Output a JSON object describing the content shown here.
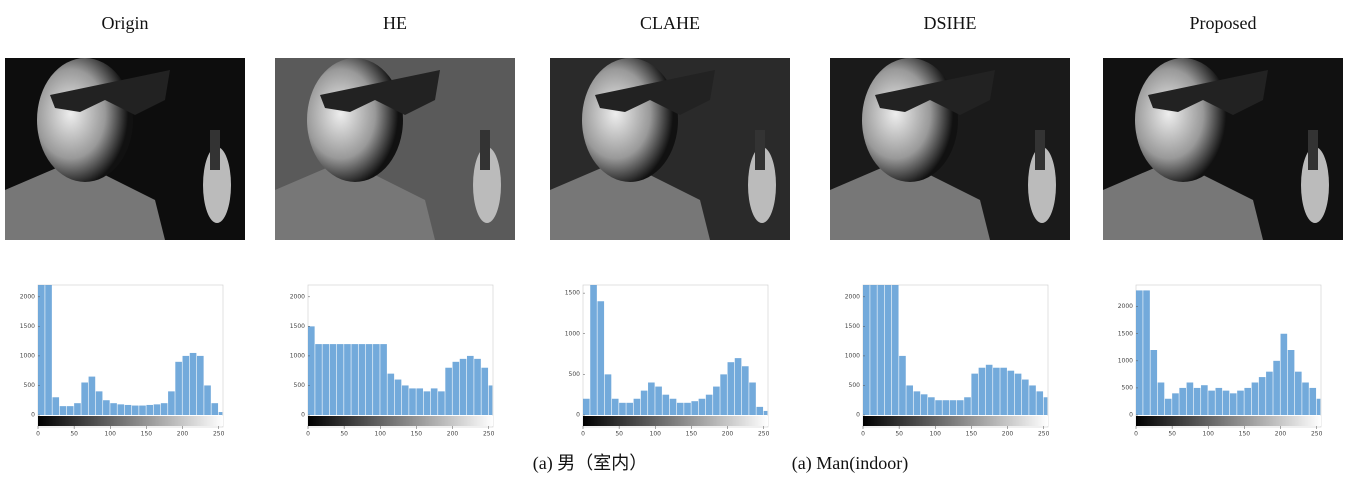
{
  "chart_data": [
    {
      "type": "histogram",
      "title": "Origin",
      "color": "#5b9bd5",
      "bins": [
        0,
        10,
        20,
        30,
        40,
        50,
        60,
        70,
        80,
        90,
        100,
        110,
        120,
        130,
        140,
        150,
        160,
        170,
        180,
        190,
        200,
        210,
        220,
        230,
        240,
        250,
        256
      ],
      "values": [
        2200,
        2200,
        300,
        150,
        150,
        200,
        550,
        650,
        400,
        250,
        200,
        180,
        170,
        160,
        160,
        170,
        180,
        200,
        400,
        900,
        1000,
        1050,
        1000,
        500,
        200,
        50
      ],
      "xlim": [
        0,
        256
      ],
      "xticks": [
        0,
        50,
        100,
        150,
        200,
        250
      ],
      "ylim": [
        0,
        2200
      ],
      "yticks": [
        0,
        500,
        1000,
        1500,
        2000
      ]
    },
    {
      "type": "histogram",
      "title": "HE",
      "color": "#5b9bd5",
      "bins": [
        0,
        10,
        20,
        30,
        40,
        50,
        60,
        70,
        80,
        90,
        100,
        110,
        120,
        130,
        140,
        150,
        160,
        170,
        180,
        190,
        200,
        210,
        220,
        230,
        240,
        250,
        256
      ],
      "values": [
        1500,
        1200,
        1200,
        1200,
        1200,
        1200,
        1200,
        1200,
        1200,
        1200,
        1200,
        700,
        600,
        500,
        450,
        450,
        400,
        450,
        400,
        800,
        900,
        950,
        1000,
        950,
        800,
        500
      ],
      "xlim": [
        0,
        256
      ],
      "xticks": [
        0,
        50,
        100,
        150,
        200,
        250
      ],
      "ylim": [
        0,
        2200
      ],
      "yticks": [
        0,
        500,
        1000,
        1500,
        2000
      ]
    },
    {
      "type": "histogram",
      "title": "CLAHE",
      "color": "#5b9bd5",
      "bins": [
        0,
        10,
        20,
        30,
        40,
        50,
        60,
        70,
        80,
        90,
        100,
        110,
        120,
        130,
        140,
        150,
        160,
        170,
        180,
        190,
        200,
        210,
        220,
        230,
        240,
        250,
        256
      ],
      "values": [
        200,
        1600,
        1400,
        500,
        200,
        150,
        150,
        200,
        300,
        400,
        350,
        250,
        200,
        150,
        150,
        170,
        200,
        250,
        350,
        500,
        650,
        700,
        600,
        400,
        100,
        50
      ],
      "xlim": [
        0,
        256
      ],
      "xticks": [
        0,
        50,
        100,
        150,
        200,
        250
      ],
      "ylim": [
        0,
        1600
      ],
      "yticks": [
        0,
        500,
        1000,
        1500
      ]
    },
    {
      "type": "histogram",
      "title": "DSIHE",
      "color": "#5b9bd5",
      "bins": [
        0,
        10,
        20,
        30,
        40,
        50,
        60,
        70,
        80,
        90,
        100,
        110,
        120,
        130,
        140,
        150,
        160,
        170,
        180,
        190,
        200,
        210,
        220,
        230,
        240,
        250,
        256
      ],
      "values": [
        2200,
        2200,
        2200,
        2200,
        2200,
        1000,
        500,
        400,
        350,
        300,
        250,
        250,
        250,
        250,
        300,
        700,
        800,
        850,
        800,
        800,
        750,
        700,
        600,
        500,
        400,
        300
      ],
      "xlim": [
        0,
        256
      ],
      "xticks": [
        0,
        50,
        100,
        150,
        200,
        250
      ],
      "ylim": [
        0,
        2200
      ],
      "yticks": [
        0,
        500,
        1000,
        1500,
        2000
      ]
    },
    {
      "type": "histogram",
      "title": "Proposed",
      "color": "#5b9bd5",
      "bins": [
        0,
        10,
        20,
        30,
        40,
        50,
        60,
        70,
        80,
        90,
        100,
        110,
        120,
        130,
        140,
        150,
        160,
        170,
        180,
        190,
        200,
        210,
        220,
        230,
        240,
        250,
        256
      ],
      "values": [
        2300,
        2300,
        1200,
        600,
        300,
        400,
        500,
        600,
        500,
        550,
        450,
        500,
        450,
        400,
        450,
        500,
        600,
        700,
        800,
        1000,
        1500,
        1200,
        800,
        600,
        500,
        300
      ],
      "xlim": [
        0,
        256
      ],
      "xticks": [
        0,
        50,
        100,
        150,
        200,
        250
      ],
      "ylim": [
        0,
        2400
      ],
      "yticks": [
        0,
        500,
        1000,
        1500,
        2000
      ]
    }
  ],
  "caption": {
    "chinese": "(a) 男（室内）",
    "english": "(a) Man(indoor)"
  }
}
